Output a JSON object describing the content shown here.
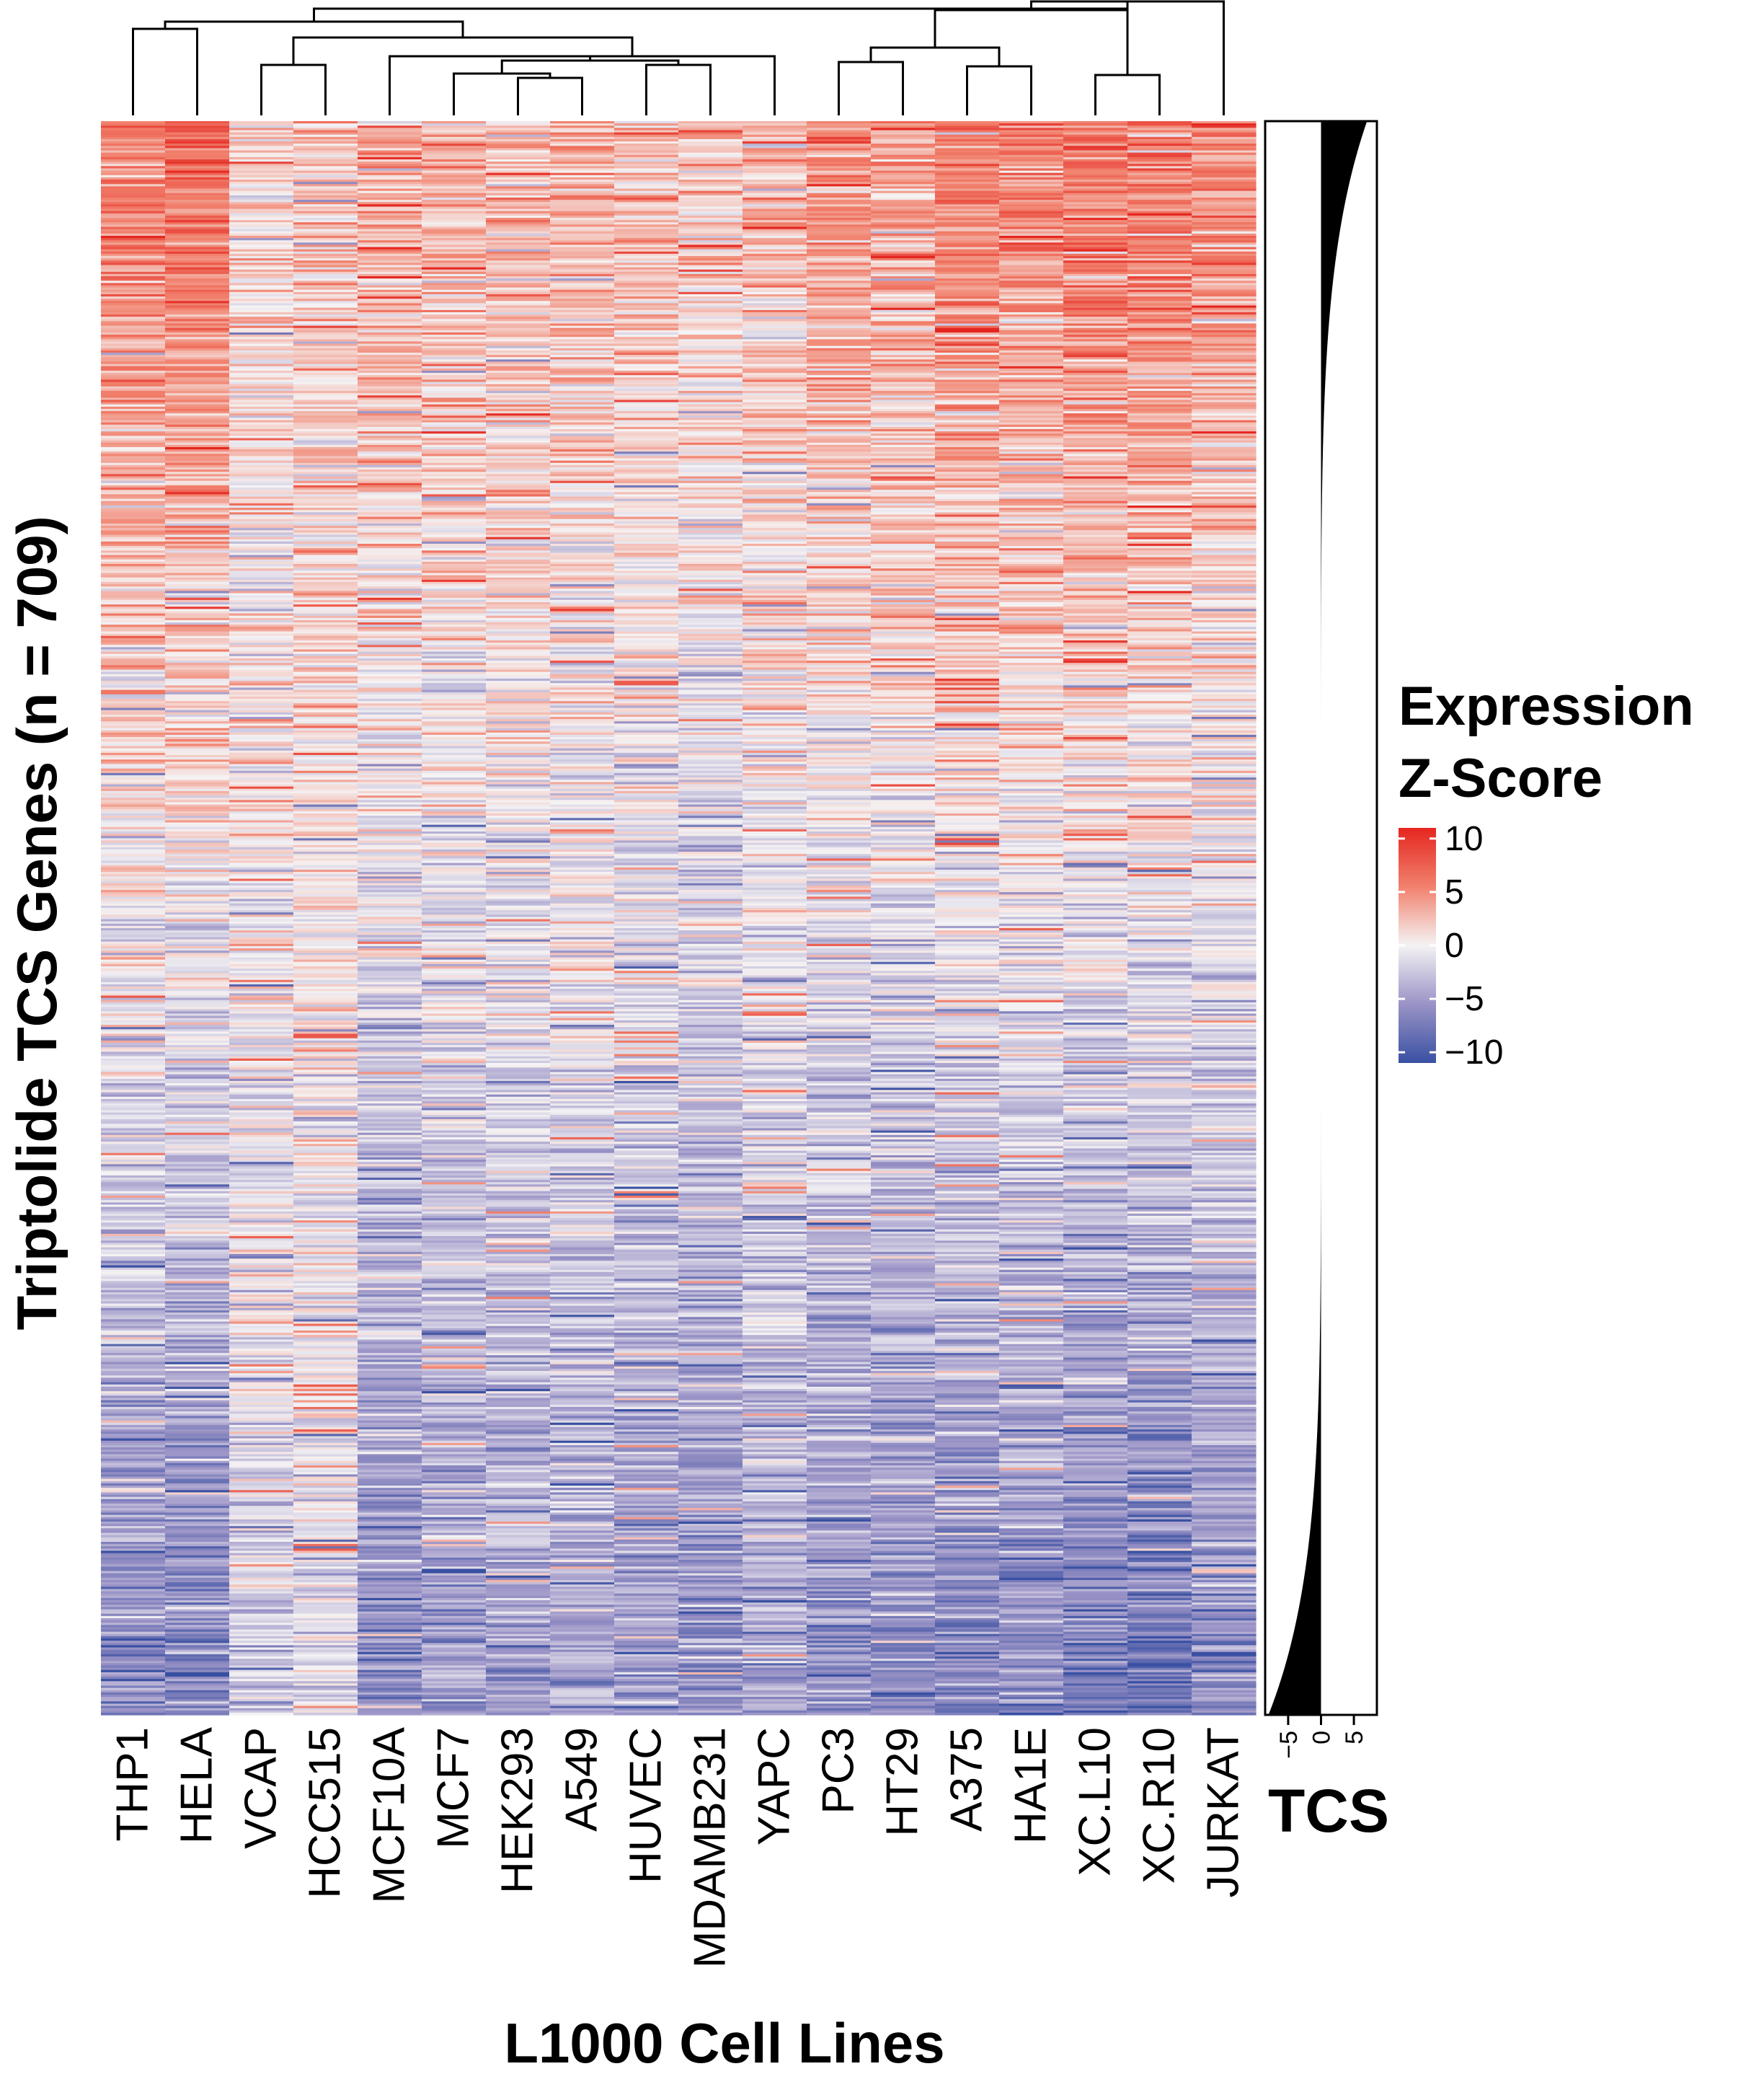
{
  "chart_data": {
    "type": "heatmap",
    "xlabel": "L1000 Cell Lines",
    "ylabel": "Triptolide TCS Genes (n = 709)",
    "n_genes": 709,
    "columns": [
      "THP1",
      "HELA",
      "VCAP",
      "HCC515",
      "MCF10A",
      "MCF7",
      "HEK293",
      "A549",
      "HUVEC",
      "MDAMB231",
      "YAPC",
      "PC3",
      "HT29",
      "A375",
      "HA1E",
      "XC.L10",
      "XC.R10",
      "JURKAT"
    ],
    "column_mean_top": [
      6.0,
      6.5,
      1.5,
      2.5,
      4.0,
      3.5,
      3.2,
      3.0,
      3.0,
      2.5,
      3.0,
      4.5,
      4.5,
      6.0,
      5.5,
      6.5,
      6.5,
      5.0
    ],
    "column_mean_bottom": [
      -6.5,
      -7.0,
      -2.0,
      -1.5,
      -6.5,
      -5.5,
      -5.0,
      -4.5,
      -5.5,
      -6.0,
      -4.5,
      -6.5,
      -6.5,
      -7.0,
      -6.5,
      -8.0,
      -8.0,
      -6.5
    ],
    "dendrogram_order": "THP1 HELA | VCAP HCC515 | MCF10A (MCF7 (HEK293 A549)) (HUVEC MDAMB231) YAPC | (PC3 HT29) (A375 HA1E) (XC.L10 XC.R10) | JURKAT",
    "legend": {
      "title_line1": "Expression",
      "title_line2": "Z-Score",
      "ticks": [
        "10",
        "5",
        "0",
        "−5",
        "−10"
      ],
      "tick_values": [
        10,
        5,
        0,
        -5,
        -10
      ],
      "range": [
        -11,
        11
      ],
      "colors": {
        "high": "#e52620",
        "mid": "#f5f3f4",
        "low": "#3950a2"
      }
    },
    "tcs_bar": {
      "title": "TCS",
      "ticks": [
        "−5",
        "0",
        "5"
      ],
      "tick_values": [
        -5,
        0,
        5
      ],
      "xlim": [
        -8.5,
        8.5
      ],
      "range_top": 7.0,
      "range_bottom": -8.0,
      "fill_color": "#000000"
    }
  }
}
